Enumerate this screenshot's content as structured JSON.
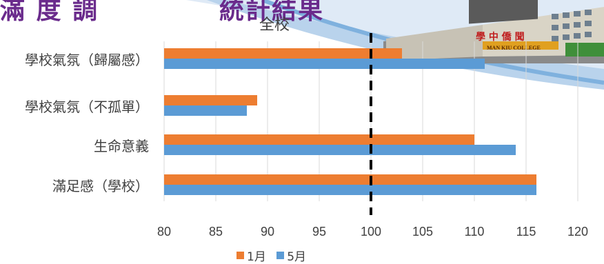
{
  "banner": {
    "title_left": "滿 度 調",
    "title_right": "統計結果",
    "building_sign": "學 中 僑 聞",
    "building_sign_en": "MAN KIU COLLEGE"
  },
  "chart_data": {
    "type": "bar",
    "orientation": "horizontal",
    "title": "全校",
    "categories": [
      "學校氣氛（歸屬感）",
      "學校氣氛（不孤單）",
      "生命意義",
      "滿足感（學校）"
    ],
    "series": [
      {
        "name": "1月",
        "color": "#ed7d31",
        "values": [
          103,
          89,
          110,
          116
        ]
      },
      {
        "name": "5月",
        "color": "#5b9bd5",
        "values": [
          111,
          88,
          114,
          116
        ]
      }
    ],
    "xlim": [
      80,
      120
    ],
    "xticks": [
      80,
      85,
      90,
      95,
      100,
      105,
      110,
      115,
      120
    ],
    "reference_line": {
      "x": 100,
      "style": "dashed",
      "color": "#000000"
    },
    "grid": "vertical",
    "legend_position": "bottom"
  }
}
